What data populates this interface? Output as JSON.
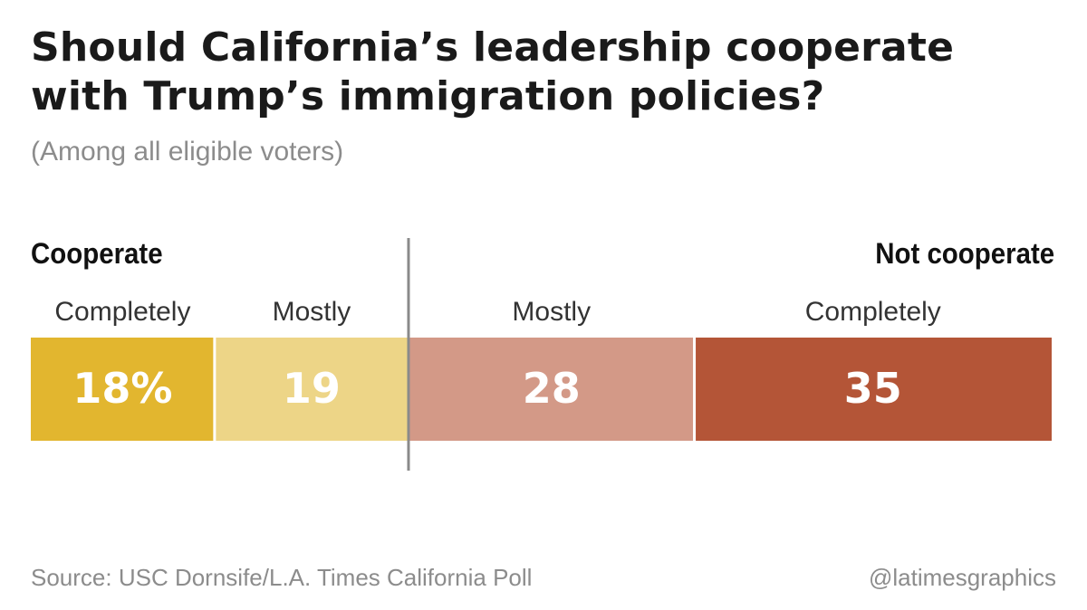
{
  "header": {
    "title": "Should California’s leadership cooperate with Trump’s immigration policies?",
    "subtitle": "(Among all eligible voters)"
  },
  "groups": {
    "left": "Cooperate",
    "right": "Not cooperate"
  },
  "chart_data": {
    "type": "bar",
    "orientation": "horizontal-stacked",
    "categories": [
      "Completely",
      "Mostly",
      "Mostly",
      "Completely"
    ],
    "groups": [
      "Cooperate",
      "Cooperate",
      "Not cooperate",
      "Not cooperate"
    ],
    "values": [
      18,
      19,
      28,
      35
    ],
    "value_labels": [
      "18%",
      "19",
      "28",
      "35"
    ],
    "colors": [
      "#e2b62f",
      "#edd587",
      "#d39987",
      "#b45537"
    ],
    "divider_color": "#8a8a8a",
    "total": 100
  },
  "footer": {
    "source": "Source: USC Dornsife/L.A. Times California Poll",
    "credit": "@latimesgraphics"
  }
}
